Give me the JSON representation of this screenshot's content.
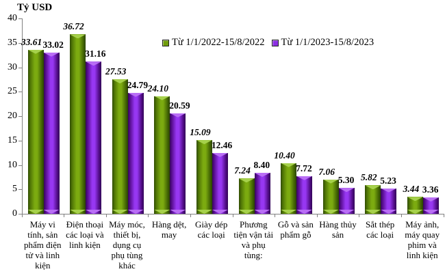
{
  "chart_data": {
    "type": "bar",
    "title": "",
    "unit_label": "Tỷ USD",
    "xlabel": "",
    "ylabel": "Tỷ USD",
    "ylim": [
      0,
      40
    ],
    "ytick_step": 5,
    "grid": false,
    "legend_position": "top-center",
    "categories": [
      "Máy vi tính, sản phẩm điện tử và linh kiện",
      "Điện thoại các loại và linh kiện",
      "Máy móc, thiết bị, dụng cụ phụ tùng khác",
      "Hàng dệt, may",
      "Giày dép các loại",
      "Phương tiện vận tải và phụ tùng:",
      "Gỗ và sản phẩm gỗ",
      "Hàng thủy sản",
      "Sắt thép các loại",
      "Máy ảnh, máy quay phim và linh kiện"
    ],
    "series": [
      {
        "name": "Từ 1/1/2022-15/8/2022",
        "color": "#6f9c0a",
        "values": [
          33.61,
          36.72,
          27.53,
          24.1,
          15.09,
          7.24,
          10.4,
          7.06,
          5.82,
          3.44
        ]
      },
      {
        "name": "Từ 1/1/2023-15/8/2023",
        "color": "#8b2fe2",
        "values": [
          33.02,
          31.16,
          24.79,
          20.59,
          12.46,
          8.4,
          7.72,
          5.3,
          5.23,
          3.36
        ]
      }
    ]
  }
}
